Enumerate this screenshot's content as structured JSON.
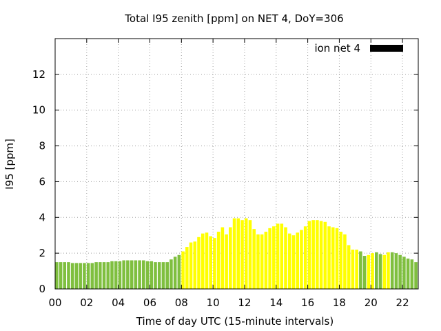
{
  "chart_data": {
    "type": "bar",
    "title": "Total I95 zenith [ppm] on NET 4, DoY=306",
    "xlabel": "Time of day UTC (15-minute intervals)",
    "ylabel": "I95 [ppm]",
    "xlim": [
      0,
      23.0
    ],
    "ylim": [
      0,
      14
    ],
    "x_ticks": [
      "00",
      "02",
      "04",
      "06",
      "08",
      "10",
      "12",
      "14",
      "16",
      "18",
      "20",
      "22"
    ],
    "y_ticks": [
      "0",
      "2",
      "4",
      "6",
      "8",
      "10",
      "12"
    ],
    "y_tick_values": [
      0,
      2,
      4,
      6,
      8,
      10,
      12
    ],
    "grid": true,
    "legend_position": "top-right",
    "series": [
      {
        "name": "ion net 4",
        "legend_color": "#000000",
        "interval_hours": 0.25,
        "start_hour": 0,
        "values": [
          1.5,
          1.5,
          1.5,
          1.5,
          1.45,
          1.45,
          1.45,
          1.45,
          1.45,
          1.45,
          1.5,
          1.5,
          1.5,
          1.5,
          1.55,
          1.55,
          1.55,
          1.6,
          1.6,
          1.6,
          1.6,
          1.6,
          1.6,
          1.55,
          1.55,
          1.5,
          1.5,
          1.5,
          1.5,
          1.65,
          1.8,
          1.9,
          2.1,
          2.35,
          2.6,
          2.65,
          2.9,
          3.1,
          3.15,
          2.95,
          2.85,
          3.2,
          3.45,
          3.05,
          3.45,
          3.95,
          3.95,
          3.85,
          3.95,
          3.85,
          3.35,
          3.05,
          3.05,
          3.2,
          3.4,
          3.5,
          3.65,
          3.65,
          3.45,
          3.1,
          3.0,
          3.15,
          3.3,
          3.5,
          3.8,
          3.85,
          3.85,
          3.8,
          3.75,
          3.5,
          3.45,
          3.4,
          3.2,
          3.05,
          2.45,
          2.2,
          2.2,
          2.1,
          1.85,
          1.9,
          2.0,
          2.05,
          1.95,
          1.9,
          2.05,
          2.05,
          2.0,
          1.9,
          1.8,
          1.7,
          1.65,
          1.5
        ],
        "colors": [
          "#7fbf3f",
          "#7fbf3f",
          "#7fbf3f",
          "#7fbf3f",
          "#7fbf3f",
          "#7fbf3f",
          "#7fbf3f",
          "#7fbf3f",
          "#7fbf3f",
          "#7fbf3f",
          "#7fbf3f",
          "#7fbf3f",
          "#7fbf3f",
          "#7fbf3f",
          "#7fbf3f",
          "#7fbf3f",
          "#7fbf3f",
          "#7fbf3f",
          "#7fbf3f",
          "#7fbf3f",
          "#7fbf3f",
          "#7fbf3f",
          "#7fbf3f",
          "#7fbf3f",
          "#7fbf3f",
          "#7fbf3f",
          "#7fbf3f",
          "#7fbf3f",
          "#7fbf3f",
          "#7fbf3f",
          "#7fbf3f",
          "#7fbf3f",
          "#ffff00",
          "#ffff00",
          "#ffff00",
          "#ffff00",
          "#ffff00",
          "#ffff00",
          "#ffff00",
          "#ffff00",
          "#ffff00",
          "#ffff00",
          "#ffff00",
          "#ffff00",
          "#ffff00",
          "#ffff00",
          "#ffff00",
          "#ffff00",
          "#ffff00",
          "#ffff00",
          "#ffff00",
          "#ffff00",
          "#ffff00",
          "#ffff00",
          "#ffff00",
          "#ffff00",
          "#ffff00",
          "#ffff00",
          "#ffff00",
          "#ffff00",
          "#ffff00",
          "#ffff00",
          "#ffff00",
          "#ffff00",
          "#ffff00",
          "#ffff00",
          "#ffff00",
          "#ffff00",
          "#ffff00",
          "#ffff00",
          "#ffff00",
          "#ffff00",
          "#ffff00",
          "#ffff00",
          "#ffff00",
          "#ffff00",
          "#ffff00",
          "#7fbf3f",
          "#7fbf3f",
          "#ffff00",
          "#ffff00",
          "#7fbf3f",
          "#7fbf3f",
          "#ffff00",
          "#ffff00",
          "#7fbf3f",
          "#7fbf3f",
          "#7fbf3f",
          "#7fbf3f",
          "#7fbf3f",
          "#7fbf3f",
          "#7fbf3f"
        ]
      }
    ]
  }
}
